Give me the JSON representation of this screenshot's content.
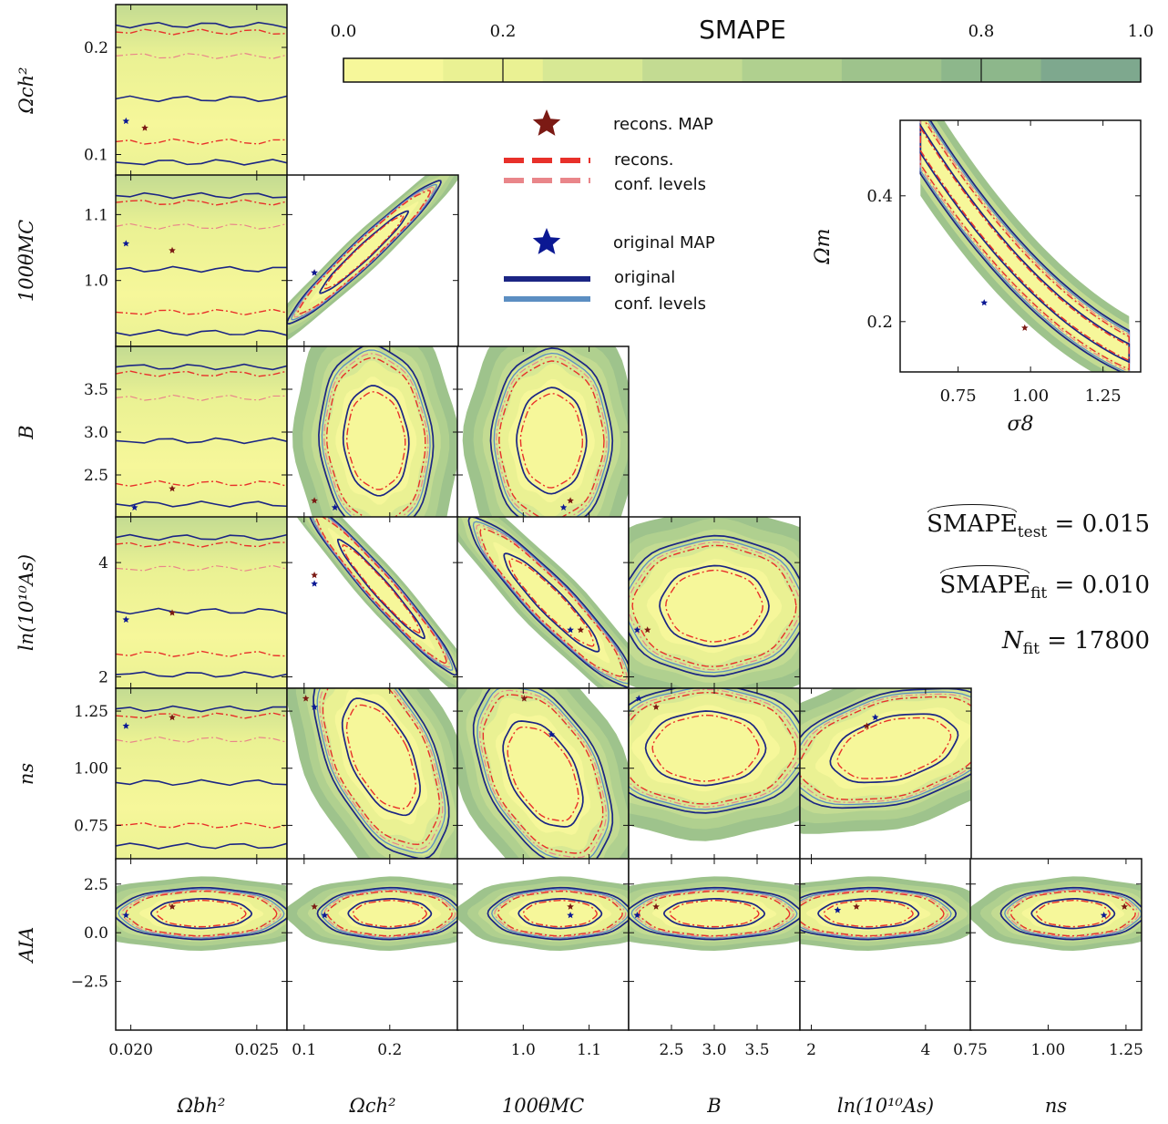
{
  "chart_data": {
    "type": "corner_contour",
    "colorbar": {
      "title": "SMAPE",
      "range": [
        0.0,
        1.0
      ],
      "tick_labels": [
        "0.0",
        "0.2",
        "0.8",
        "1.0"
      ],
      "tick_values": [
        0.0,
        0.2,
        0.8,
        1.0
      ],
      "colors": [
        "#f6f79a",
        "#eaf193",
        "#d7e894",
        "#c3db92",
        "#b0d08f",
        "#9ec38c",
        "#8db78b",
        "#7ea88e"
      ]
    },
    "legend": {
      "recons_map": "recons. MAP",
      "recons_line1": "recons.",
      "recons_line2": "conf. levels",
      "original_map": "original MAP",
      "original_line1": "original",
      "original_line2": "conf. levels"
    },
    "colors": {
      "recons_inner": "#e8302a",
      "recons_outer": "#e9868a",
      "original_inner": "#1b2584",
      "original_outer": "#5c8ec2",
      "recons_star": "#7b1a14",
      "original_star": "#0b1893"
    },
    "row_labels": [
      "Ωch²",
      "100θMC",
      "B",
      "ln(10¹⁰As)",
      "ns",
      "AIA"
    ],
    "col_labels": [
      "Ωbh²",
      "Ωch²",
      "100θMC",
      "B",
      "ln(10¹⁰As)",
      "ns"
    ],
    "x_ticks": [
      {
        "values": [
          "0.020",
          "0.025"
        ],
        "pos": [
          0.02,
          0.025
        ],
        "range": [
          0.0194,
          0.0262
        ]
      },
      {
        "values": [
          "0.1",
          "0.2"
        ],
        "pos": [
          0.1,
          0.2
        ],
        "range": [
          0.08,
          0.28
        ]
      },
      {
        "values": [
          "1.0",
          "1.1"
        ],
        "pos": [
          1.0,
          1.1
        ],
        "range": [
          0.9,
          1.16
        ]
      },
      {
        "values": [
          "2.5",
          "3.0",
          "3.5"
        ],
        "pos": [
          2.5,
          3.0,
          3.5
        ],
        "range": [
          2.0,
          4.0
        ]
      },
      {
        "values": [
          "2",
          "4"
        ],
        "pos": [
          2,
          4
        ],
        "range": [
          1.8,
          4.8
        ]
      },
      {
        "values": [
          "0.75",
          "1.00",
          "1.25"
        ],
        "pos": [
          0.75,
          1.0,
          1.25
        ],
        "range": [
          0.75,
          1.3
        ]
      }
    ],
    "y_ticks": [
      {
        "values": [
          "0.2",
          "0.1"
        ],
        "pos": [
          0.2,
          0.1
        ],
        "range": [
          0.08,
          0.24
        ]
      },
      {
        "values": [
          "1.1",
          "1.0"
        ],
        "pos": [
          1.1,
          1.0
        ],
        "range": [
          0.9,
          1.16
        ]
      },
      {
        "values": [
          "3.5",
          "3.0",
          "2.5"
        ],
        "pos": [
          3.5,
          3.0,
          2.5
        ],
        "range": [
          2.0,
          4.0
        ]
      },
      {
        "values": [
          "4",
          "2"
        ],
        "pos": [
          4,
          2
        ],
        "range": [
          1.8,
          4.8
        ]
      },
      {
        "values": [
          "1.25",
          "1.00",
          "0.75"
        ],
        "pos": [
          1.25,
          1.0,
          0.75
        ],
        "range": [
          0.6,
          1.35
        ]
      },
      {
        "values": [
          "2.5",
          "0.0",
          "−2.5"
        ],
        "pos": [
          2.5,
          0.0,
          -2.5
        ],
        "range": [
          -5.0,
          3.8
        ]
      }
    ],
    "inset": {
      "xlabel": "σ8",
      "ylabel": "Ωm",
      "x_ticks": [
        "0.75",
        "1.00",
        "1.25"
      ],
      "x_tick_values": [
        0.75,
        1.0,
        1.25
      ],
      "y_ticks": [
        "0.4",
        "0.2"
      ],
      "y_tick_values": [
        0.4,
        0.2
      ],
      "xlim": [
        0.55,
        1.38
      ],
      "ylim": [
        0.12,
        0.52
      ]
    },
    "stats": {
      "smape_test_label": "SMAPE",
      "smape_test_sub": "test",
      "smape_test_value": "= 0.015",
      "smape_fit_label": "SMAPE",
      "smape_fit_sub": "fit",
      "smape_fit_value": "= 0.010",
      "n_fit_label": "N",
      "n_fit_sub": "fit",
      "n_fit_value": "= 17800"
    }
  }
}
